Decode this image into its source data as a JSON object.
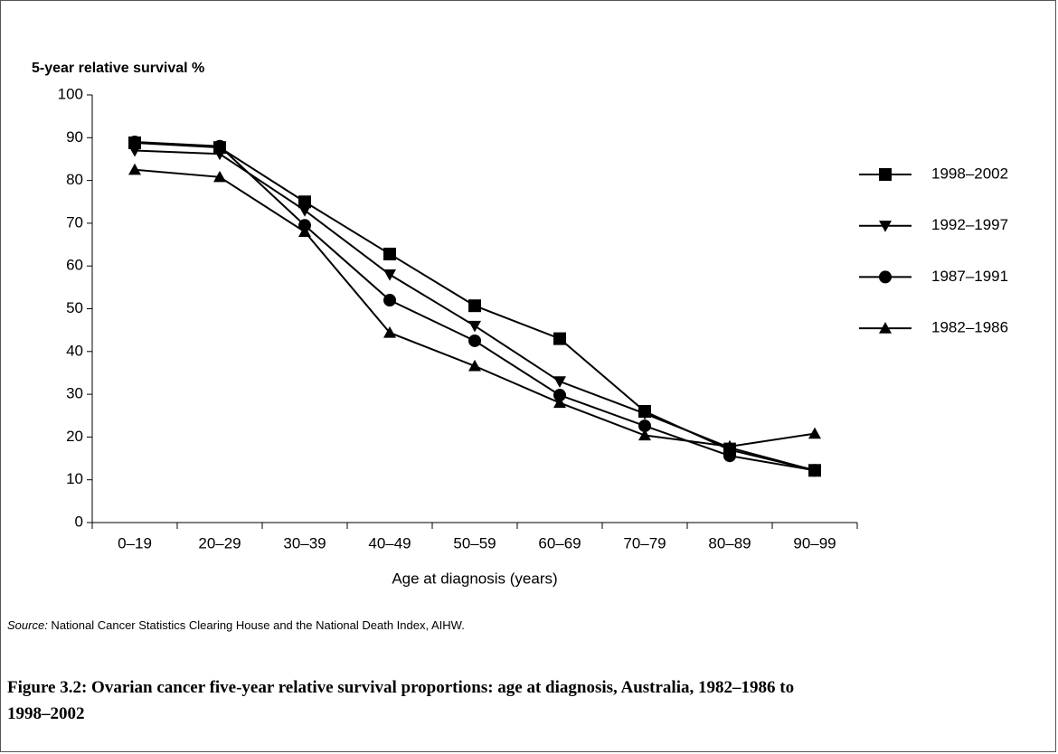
{
  "chart_data": {
    "type": "line",
    "y_axis_title": "5-year relative survival %",
    "x_axis_title": "Age at diagnosis (years)",
    "categories": [
      "0–19",
      "20–29",
      "30–39",
      "40–49",
      "50–59",
      "60–69",
      "70–79",
      "80–89",
      "90–99"
    ],
    "series": [
      {
        "name": "1998–2002",
        "color": "#000000",
        "marker": "square",
        "values": [
          88.8,
          87.7,
          75,
          62.8,
          50.7,
          43,
          26,
          17,
          12.2
        ]
      },
      {
        "name": "1992–1997",
        "color": "#000000",
        "marker": "triangle-down",
        "values": [
          87,
          86.2,
          73,
          58,
          46,
          33,
          25.5,
          17.5,
          12.2
        ]
      },
      {
        "name": "1987–1991",
        "color": "#000000",
        "marker": "circle",
        "values": [
          89,
          88,
          69.5,
          52,
          42.5,
          29.8,
          22.6,
          15.6,
          12.2
        ]
      },
      {
        "name": "1982–1986",
        "color": "#000000",
        "marker": "triangle-up",
        "values": [
          82.5,
          80.8,
          68,
          44.4,
          36.6,
          28,
          20.4,
          17.8,
          20.8
        ]
      }
    ],
    "ylim": [
      0,
      100
    ],
    "yticks": [
      0,
      10,
      20,
      30,
      40,
      50,
      60,
      70,
      80,
      90,
      100
    ],
    "grid": false,
    "legend": "right"
  },
  "source": {
    "label": "Source:",
    "text": " National Cancer Statistics Clearing House and the National Death Index, AIHW."
  },
  "caption": "Figure 3.2: Ovarian cancer five-year relative survival proportions: age at diagnosis, Australia, 1982–1986 to 1998–2002"
}
